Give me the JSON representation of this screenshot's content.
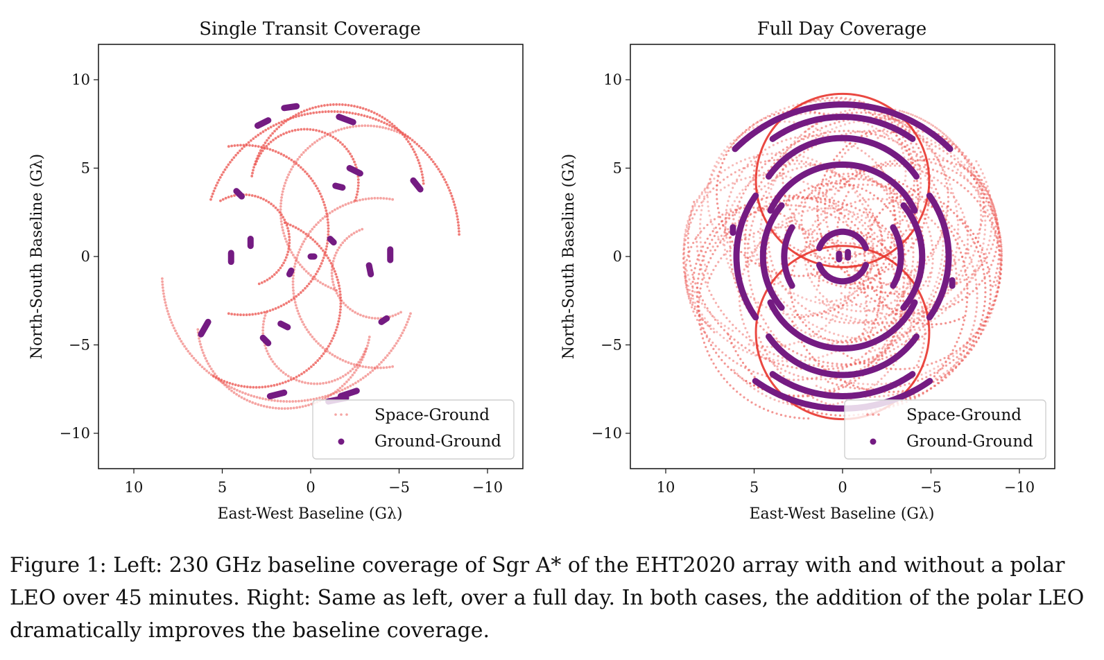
{
  "colors": {
    "space_ground": "#ec5a55",
    "space_ground_orbit": "#e8342c",
    "ground_ground": "#741b82"
  },
  "chart_data": [
    {
      "type": "scatter",
      "title": "Single Transit Coverage",
      "xlabel": "East-West Baseline (Gλ)",
      "ylabel": "North-South Baseline (Gλ)",
      "xlim": [
        12,
        -12
      ],
      "ylim": [
        -12,
        12
      ],
      "xticks": [
        10,
        5,
        0,
        -5,
        -10
      ],
      "yticks": [
        10,
        5,
        0,
        -5,
        -10
      ],
      "xtick_labels": [
        "10",
        "5",
        "0",
        "−5",
        "−10"
      ],
      "ytick_labels": [
        "10",
        "5",
        "0",
        "−5",
        "−10"
      ],
      "legend": {
        "position": "lower right",
        "entries": [
          "Space-Ground",
          "Ground-Ground"
        ]
      },
      "series": [
        {
          "name": "Space-Ground",
          "style": "dotted arcs",
          "arcs": [
            {
              "cx": -1.2,
              "cy": 1.0,
              "r": 7.2,
              "a0": 18,
              "a1": 178
            },
            {
              "cx": 1.2,
              "cy": -1.0,
              "r": 7.2,
              "a0": 198,
              "a1": 358
            },
            {
              "cx": -1.5,
              "cy": 3.7,
              "r": 4.9,
              "a0": 10,
              "a1": 175
            },
            {
              "cx": 1.5,
              "cy": -3.7,
              "r": 4.9,
              "a0": 190,
              "a1": 355
            },
            {
              "cx": 3.8,
              "cy": 1.5,
              "r": 4.8,
              "a0": 80,
              "a1": 280
            },
            {
              "cx": -3.8,
              "cy": -1.5,
              "r": 4.8,
              "a0": 260,
              "a1": 460
            },
            {
              "cx": 3.1,
              "cy": -2.6,
              "r": 4.8,
              "a0": 110,
              "a1": 300
            },
            {
              "cx": -3.1,
              "cy": 2.6,
              "r": 4.8,
              "a0": 290,
              "a1": 480
            },
            {
              "cx": 0.3,
              "cy": 4.2,
              "r": 3.0,
              "a0": 20,
              "a1": 200
            },
            {
              "cx": -0.3,
              "cy": -4.2,
              "r": 3.0,
              "a0": 200,
              "a1": 380
            },
            {
              "cx": 3.8,
              "cy": 0.9,
              "r": 2.6,
              "a0": 60,
              "a1": 250
            },
            {
              "cx": -3.8,
              "cy": -0.9,
              "r": 2.6,
              "a0": 240,
              "a1": 430
            }
          ]
        },
        {
          "name": "Ground-Ground",
          "style": "short dense clusters",
          "segments": [
            [
              [
                1.5,
                8.4
              ],
              [
                0.8,
                8.5
              ]
            ],
            [
              [
                3.0,
                7.4
              ],
              [
                2.4,
                7.7
              ]
            ],
            [
              [
                -1.6,
                7.9
              ],
              [
                -2.4,
                7.6
              ]
            ],
            [
              [
                -2.2,
                5.0
              ],
              [
                -2.8,
                4.7
              ]
            ],
            [
              [
                -1.4,
                4.0
              ],
              [
                -1.8,
                3.9
              ]
            ],
            [
              [
                4.2,
                3.7
              ],
              [
                3.9,
                3.4
              ]
            ],
            [
              [
                -5.8,
                4.3
              ],
              [
                -6.2,
                3.8
              ]
            ],
            [
              [
                3.4,
                1.0
              ],
              [
                3.4,
                0.6
              ]
            ],
            [
              [
                4.5,
                0.2
              ],
              [
                4.5,
                -0.3
              ]
            ],
            [
              [
                -1.1,
                1.0
              ],
              [
                -1.3,
                0.8
              ]
            ],
            [
              [
                0.0,
                0.0
              ],
              [
                -0.2,
                0.0
              ]
            ],
            [
              [
                -4.5,
                0.4
              ],
              [
                -4.5,
                -0.2
              ]
            ],
            [
              [
                1.1,
                -0.8
              ],
              [
                1.2,
                -1.0
              ]
            ],
            [
              [
                -3.3,
                -0.5
              ],
              [
                -3.4,
                -1.0
              ]
            ],
            [
              [
                5.8,
                -3.7
              ],
              [
                6.2,
                -4.4
              ]
            ],
            [
              [
                -4.0,
                -3.7
              ],
              [
                -4.3,
                -3.5
              ]
            ],
            [
              [
                1.7,
                -3.8
              ],
              [
                1.3,
                -4.0
              ]
            ],
            [
              [
                2.7,
                -4.6
              ],
              [
                2.4,
                -4.9
              ]
            ],
            [
              [
                -2.6,
                -7.6
              ],
              [
                -1.7,
                -7.9
              ]
            ],
            [
              [
                1.5,
                -7.7
              ],
              [
                2.3,
                -7.9
              ]
            ],
            [
              [
                -2.0,
                -8.0
              ],
              [
                -1.0,
                -8.2
              ]
            ]
          ]
        }
      ]
    },
    {
      "type": "scatter",
      "title": "Full Day Coverage",
      "xlabel": "East-West Baseline (Gλ)",
      "ylabel": "North-South Baseline (Gλ)",
      "xlim": [
        12,
        -12
      ],
      "ylim": [
        -12,
        12
      ],
      "xticks": [
        10,
        5,
        0,
        -5,
        -10
      ],
      "yticks": [
        10,
        5,
        0,
        -5,
        -10
      ],
      "xtick_labels": [
        "10",
        "5",
        "0",
        "−5",
        "−10"
      ],
      "ytick_labels": [
        "10",
        "5",
        "0",
        "−5",
        "−10"
      ],
      "legend": {
        "position": "lower right",
        "entries": [
          "Space-Ground",
          "Ground-Ground"
        ]
      },
      "series": [
        {
          "name": "Space-Ground",
          "style": "dense dotted arcs filling disk of radius ~9",
          "disk_radius": 9.0,
          "polar_orbit_circles": [
            {
              "cx": 0,
              "cy": 4.3,
              "r": 4.9
            },
            {
              "cx": 0,
              "cy": -4.3,
              "r": 4.9
            }
          ]
        },
        {
          "name": "Ground-Ground",
          "style": "dense track arcs",
          "arcs": [
            {
              "cx": 0,
              "cy": 0,
              "r": 8.6,
              "a0": 45,
              "a1": 135
            },
            {
              "cx": 0,
              "cy": 0,
              "r": 8.6,
              "a0": 235,
              "a1": 305
            },
            {
              "cx": 0,
              "cy": 1.0,
              "r": 6.9,
              "a0": 55,
              "a1": 125
            },
            {
              "cx": 0,
              "cy": -1.0,
              "r": 6.9,
              "a0": 235,
              "a1": 305
            },
            {
              "cx": 0,
              "cy": 0.7,
              "r": 4.5,
              "a0": 25,
              "a1": 155
            },
            {
              "cx": 0,
              "cy": -0.7,
              "r": 4.5,
              "a0": 205,
              "a1": 335
            },
            {
              "cx": 0,
              "cy": 1.6,
              "r": 5.1,
              "a0": 35,
              "a1": 145
            },
            {
              "cx": 0,
              "cy": -1.6,
              "r": 5.1,
              "a0": 215,
              "a1": 325
            },
            {
              "cx": 0,
              "cy": 0,
              "r": 4.5,
              "a0": 140,
              "a1": 220
            },
            {
              "cx": 0,
              "cy": 0,
              "r": 4.5,
              "a0": -40,
              "a1": 40
            },
            {
              "cx": 0,
              "cy": 0,
              "r": 3.3,
              "a0": 150,
              "a1": 210
            },
            {
              "cx": 0,
              "cy": 0,
              "r": 3.3,
              "a0": -30,
              "a1": 30
            },
            {
              "cx": 0,
              "cy": 0,
              "r": 6.0,
              "a0": 145,
              "a1": 215
            },
            {
              "cx": 0,
              "cy": 0,
              "r": 6.0,
              "a0": -35,
              "a1": 35
            },
            {
              "cx": 0,
              "cy": 0,
              "r": 1.4,
              "a0": 20,
              "a1": 160
            },
            {
              "cx": 0,
              "cy": 0,
              "r": 1.4,
              "a0": 200,
              "a1": 340
            }
          ],
          "points": [
            [
              6.2,
              1.5
            ],
            [
              -6.2,
              -1.5
            ],
            [
              0.2,
              0.0
            ],
            [
              -0.3,
              0.1
            ]
          ]
        }
      ]
    }
  ],
  "caption": "Figure 1: Left: 230 GHz baseline coverage of Sgr A* of the EHT2020 array with and without a polar LEO over 45 minutes. Right: Same as left, over a full day. In both cases, the addition of the polar LEO dramatically improves the baseline coverage."
}
